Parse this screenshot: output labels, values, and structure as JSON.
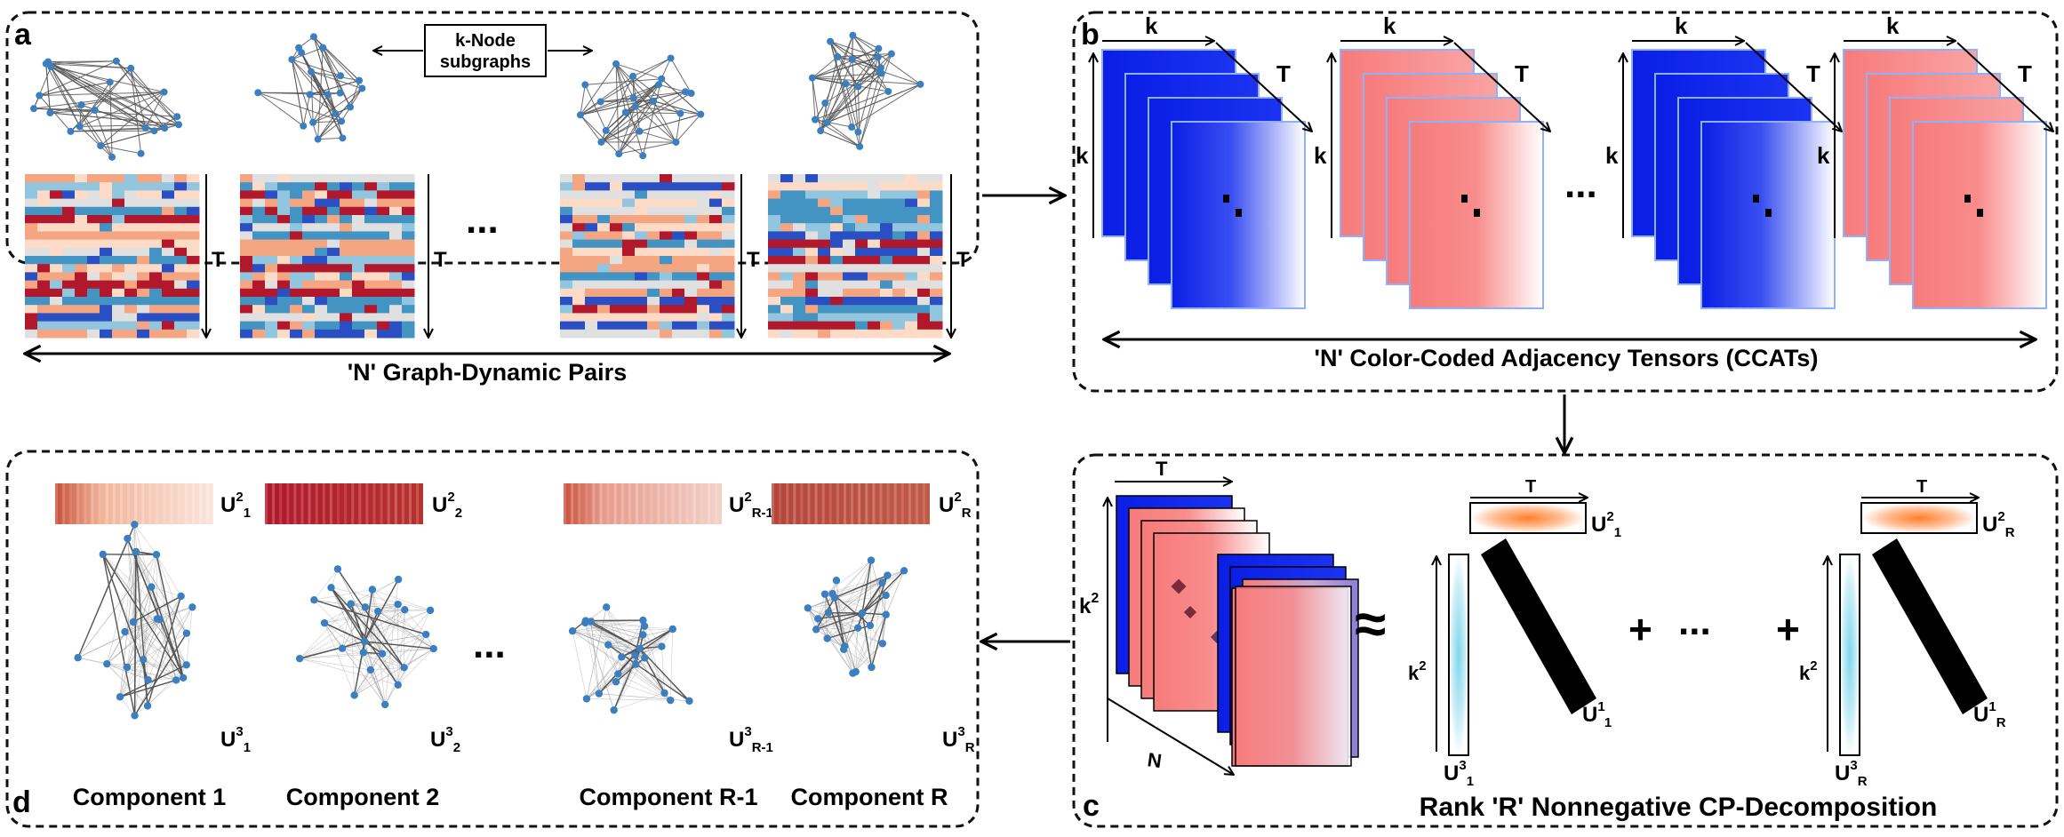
{
  "colors": {
    "red": "#b2182b",
    "salmon": "#f4a582",
    "light_red": "#fddbc7",
    "grey": "#e0e0e0",
    "light_blue": "#92c5de",
    "mid_blue": "#4393c3",
    "blue": "#2a4fc2",
    "tensor_blue": "#0a1ee6",
    "tensor_red": "#f77b7b",
    "node_blue": "#3b7fc0",
    "factor_orange": "#ff7f2a",
    "factor_cyan": "#7fd6ec"
  },
  "panel_a": {
    "letter": "a",
    "subgraph_tag": "k-Node\nsubgraphs",
    "time_label": "T",
    "ellipsis": "...",
    "caption": "'N' Graph-Dynamic Pairs"
  },
  "panel_b": {
    "letter": "b",
    "k_label": "k",
    "t_label": "T",
    "ellipsis": "...",
    "caption": "'N' Color-Coded Adjacency Tensors (CCATs)"
  },
  "panel_c": {
    "letter": "c",
    "t_label": "T",
    "k2_label": "k",
    "k2_sup": "2",
    "n_label": "N",
    "approx": "≈",
    "plus": "+",
    "ellipsis": "...",
    "caption": "Rank 'R' Nonnegative CP-Decomposition",
    "factors": {
      "u2_1": {
        "base": "U",
        "sup": "2",
        "sub": "1"
      },
      "u1_1": {
        "base": "U",
        "sup": "1",
        "sub": "1"
      },
      "u3_1": {
        "base": "U",
        "sup": "3",
        "sub": "1"
      },
      "u2_R": {
        "base": "U",
        "sup": "2",
        "sub": "R"
      },
      "u1_R": {
        "base": "U",
        "sup": "1",
        "sub": "R"
      },
      "u3_R": {
        "base": "U",
        "sup": "3",
        "sub": "R"
      }
    }
  },
  "panel_d": {
    "letter": "d",
    "ellipsis": "...",
    "components": [
      {
        "name": "Component 1",
        "u2": {
          "base": "U",
          "sup": "2",
          "sub": "1"
        },
        "u3": {
          "base": "U",
          "sup": "3",
          "sub": "1"
        }
      },
      {
        "name": "Component 2",
        "u2": {
          "base": "U",
          "sup": "2",
          "sub": "2"
        },
        "u3": {
          "base": "U",
          "sup": "3",
          "sub": "2"
        }
      },
      {
        "name": "Component R-1",
        "u2": {
          "base": "U",
          "sup": "2",
          "sub": "R-1"
        },
        "u3": {
          "base": "U",
          "sup": "3",
          "sub": "R-1"
        }
      },
      {
        "name": "Component R",
        "u2": {
          "base": "U",
          "sup": "2",
          "sub": "R"
        },
        "u3": {
          "base": "U",
          "sup": "3",
          "sub": "R"
        }
      }
    ]
  }
}
